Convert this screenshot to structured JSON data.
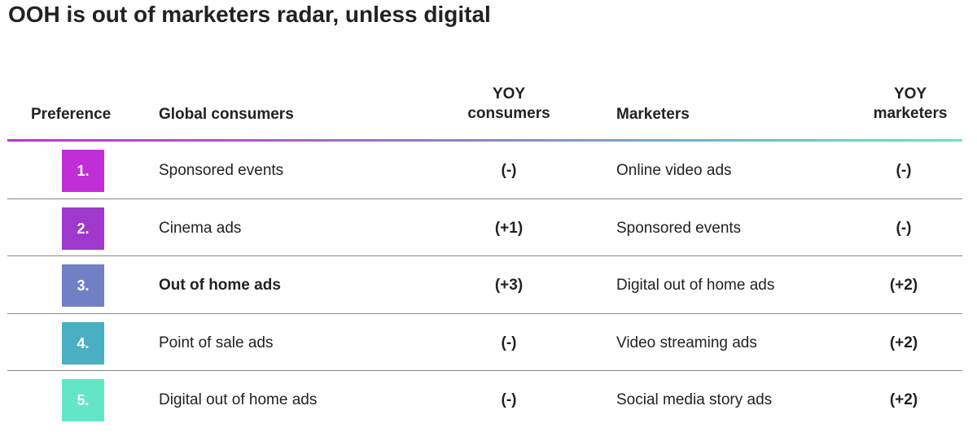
{
  "title": "OOH is out of marketers radar, unless digital",
  "headers": {
    "preference": "Preference",
    "global_consumers": "Global consumers",
    "yoy_consumers_line1": "YOY",
    "yoy_consumers_line2": "consumers",
    "marketers": "Marketers",
    "yoy_marketers_line1": "YOY",
    "yoy_marketers_line2": "marketers"
  },
  "colors": {
    "rank_badges": [
      "#c12ed8",
      "#9f38cc",
      "#717fc7",
      "#4aafc2",
      "#63e6c6"
    ],
    "gradient_start": "#c12ed8",
    "gradient_end": "#63e6c6"
  },
  "chart_data": {
    "type": "table",
    "columns": [
      "Preference",
      "Global consumers",
      "YOY consumers",
      "Marketers",
      "YOY marketers"
    ],
    "rows": [
      {
        "rank": "1.",
        "consumer": "Sponsored events",
        "yoy_consumers": "(-)",
        "marketer": "Online video ads",
        "yoy_marketers": "(-)"
      },
      {
        "rank": "2.",
        "consumer": "Cinema ads",
        "yoy_consumers": "(+1)",
        "marketer": "Sponsored events",
        "yoy_marketers": "(-)"
      },
      {
        "rank": "3.",
        "consumer": "Out of home ads",
        "consumer_bold": true,
        "yoy_consumers": "(+3)",
        "marketer": "Digital out of home ads",
        "yoy_marketers": "(+2)"
      },
      {
        "rank": "4.",
        "consumer": "Point of sale ads",
        "yoy_consumers": "(-)",
        "marketer": "Video streaming ads",
        "yoy_marketers": "(+2)"
      },
      {
        "rank": "5.",
        "consumer": "Digital out of home ads",
        "yoy_consumers": "(-)",
        "marketer": "Social media story ads",
        "yoy_marketers": "(+2)"
      }
    ]
  }
}
